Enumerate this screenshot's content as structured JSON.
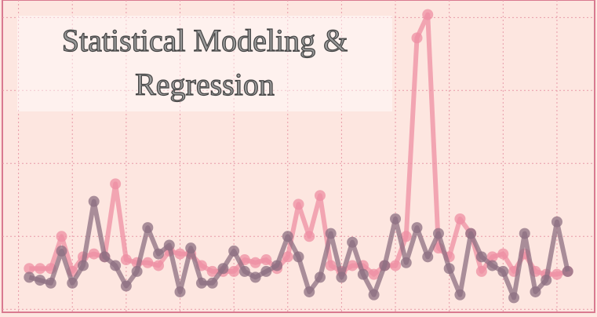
{
  "chart_data": {
    "type": "line",
    "title": "Statistical Modeling & Regression",
    "x": [
      0,
      1,
      2,
      3,
      4,
      5,
      6,
      7,
      8,
      9,
      10,
      11,
      12,
      13,
      14,
      15,
      16,
      17,
      18,
      19,
      20,
      21,
      22,
      23,
      24,
      25,
      26,
      27,
      28,
      29,
      30,
      31,
      32,
      33,
      34,
      35,
      36,
      37,
      38,
      39,
      40,
      41,
      42,
      43,
      44,
      45,
      46,
      47,
      48,
      49,
      50
    ],
    "series": [
      {
        "color": "#ee8fa3",
        "values": [
          14,
          14,
          14,
          25,
          13,
          18,
          19,
          18,
          43,
          17,
          16,
          16,
          15,
          20,
          19,
          19,
          15,
          13,
          13,
          13,
          17,
          16,
          17,
          14,
          18,
          36,
          25,
          39,
          15,
          13,
          15,
          15,
          12,
          15,
          15,
          25,
          93,
          101,
          21,
          18,
          31,
          26,
          13,
          18,
          19,
          13,
          19,
          13,
          12,
          12,
          13
        ]
      },
      {
        "color": "#8c6f82",
        "values": [
          11,
          10,
          9,
          20,
          9,
          15,
          37,
          18,
          15,
          8,
          13,
          28,
          19,
          22,
          6,
          21,
          9,
          9,
          14,
          20,
          13,
          11,
          13,
          15,
          25,
          18,
          6,
          11,
          26,
          11,
          23,
          12,
          5,
          15,
          31,
          16,
          28,
          18,
          26,
          14,
          5,
          26,
          18,
          15,
          13,
          4,
          26,
          6,
          10,
          30,
          13
        ]
      }
    ],
    "xlim": [
      -2.5,
      52.5
    ],
    "xticks": [
      -1,
      4,
      9,
      14,
      19,
      24,
      29,
      34,
      39,
      44,
      49
    ],
    "ylim": [
      -1,
      106
    ],
    "yticks": [
      0,
      25,
      50,
      75,
      100
    ],
    "grid": true
  }
}
